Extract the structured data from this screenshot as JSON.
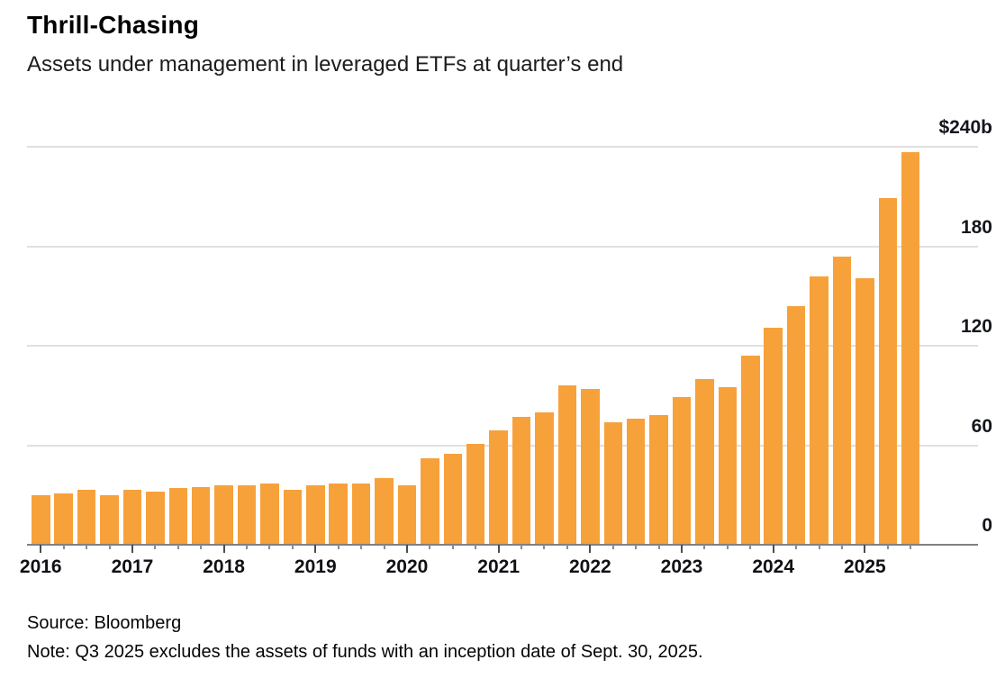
{
  "header": {
    "title": "Thrill-Chasing",
    "subtitle": "Assets under management in leveraged ETFs at quarter’s end"
  },
  "chart_data": {
    "type": "bar",
    "title": "Thrill-Chasing",
    "subtitle": "Assets under management in leveraged ETFs at quarter’s end",
    "unit": "billions of US dollars",
    "bar_color": "#F7A13B",
    "gridline_color": "#E0E0E0",
    "axis_color": "#808080",
    "ylim": [
      0,
      240
    ],
    "yticks": [
      {
        "value": 0,
        "label": "0"
      },
      {
        "value": 60,
        "label": "60"
      },
      {
        "value": 120,
        "label": "120"
      },
      {
        "value": 180,
        "label": "180"
      },
      {
        "value": 240,
        "label": "$240b"
      }
    ],
    "year_labels": [
      "2016",
      "2017",
      "2018",
      "2019",
      "2020",
      "2021",
      "2022",
      "2023",
      "2024",
      "2025"
    ],
    "categories": [
      "Q1 2016",
      "Q2 2016",
      "Q3 2016",
      "Q4 2016",
      "Q1 2017",
      "Q2 2017",
      "Q3 2017",
      "Q4 2017",
      "Q1 2018",
      "Q2 2018",
      "Q3 2018",
      "Q4 2018",
      "Q1 2019",
      "Q2 2019",
      "Q3 2019",
      "Q4 2019",
      "Q1 2020",
      "Q2 2020",
      "Q3 2020",
      "Q4 2020",
      "Q1 2021",
      "Q2 2021",
      "Q3 2021",
      "Q4 2021",
      "Q1 2022",
      "Q2 2022",
      "Q3 2022",
      "Q4 2022",
      "Q1 2023",
      "Q2 2023",
      "Q3 2023",
      "Q4 2023",
      "Q1 2024",
      "Q2 2024",
      "Q3 2024",
      "Q4 2024",
      "Q1 2025",
      "Q2 2025",
      "Q3 2025"
    ],
    "values": [
      30,
      31,
      33,
      30,
      33,
      32,
      34,
      35,
      36,
      36,
      37,
      33,
      36,
      37,
      37,
      40,
      36,
      52,
      55,
      61,
      69,
      77,
      80,
      96,
      94,
      74,
      76,
      78,
      89,
      100,
      95,
      114,
      131,
      144,
      162,
      174,
      161,
      209,
      237
    ],
    "legend": null,
    "grid": true
  },
  "footer": {
    "source": "Source: Bloomberg",
    "note": "Note: Q3 2025 excludes the assets of funds with an inception date of Sept. 30, 2025."
  }
}
